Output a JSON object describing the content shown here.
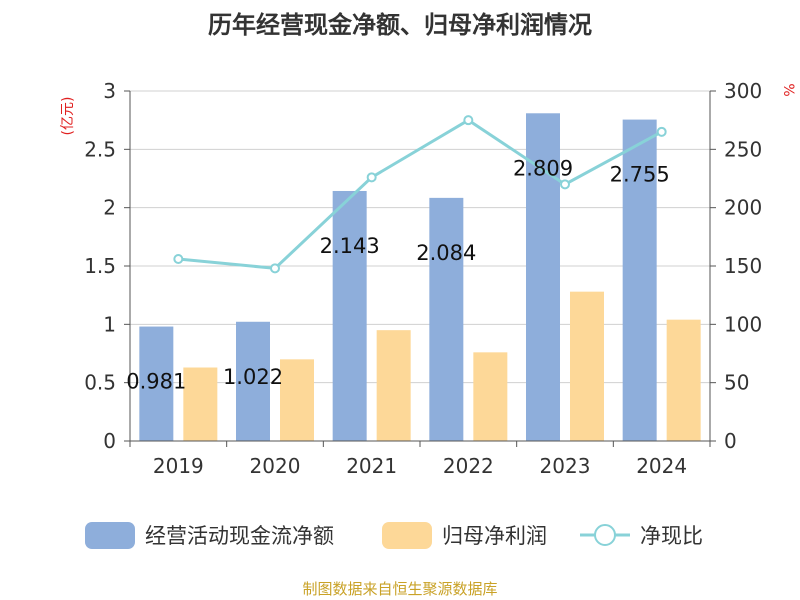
{
  "chart_data": {
    "type": "bar",
    "title": "历年经营现金净额、归母净利润情况",
    "y_unit_left": "(亿元)",
    "y_unit_right": "%",
    "categories": [
      "2019",
      "2020",
      "2021",
      "2022",
      "2023",
      "2024"
    ],
    "series": [
      {
        "name": "经营活动现金流净额",
        "type": "bar",
        "axis": "left",
        "values": [
          0.981,
          1.022,
          2.143,
          2.084,
          2.809,
          2.755
        ],
        "color": "#8eaedb",
        "labels_shown": true
      },
      {
        "name": "归母净利润",
        "type": "bar",
        "axis": "left",
        "values": [
          0.63,
          0.7,
          0.95,
          0.76,
          1.28,
          1.04
        ],
        "color": "#fdd898",
        "labels_shown": false
      },
      {
        "name": "净现比",
        "type": "line",
        "axis": "right",
        "values": [
          156,
          148,
          226,
          275,
          220,
          265
        ],
        "color": "#88d2d8"
      }
    ],
    "ylim_left": [
      0,
      3
    ],
    "yticks_left": [
      "0",
      "0.5",
      "1",
      "1.5",
      "2",
      "2.5",
      "3"
    ],
    "ylim_right": [
      0,
      300
    ],
    "yticks_right": [
      "0",
      "50",
      "100",
      "150",
      "200",
      "250",
      "300"
    ],
    "grid": true,
    "legend_position": "bottom"
  },
  "source_text": "制图数据来自恒生聚源数据库"
}
